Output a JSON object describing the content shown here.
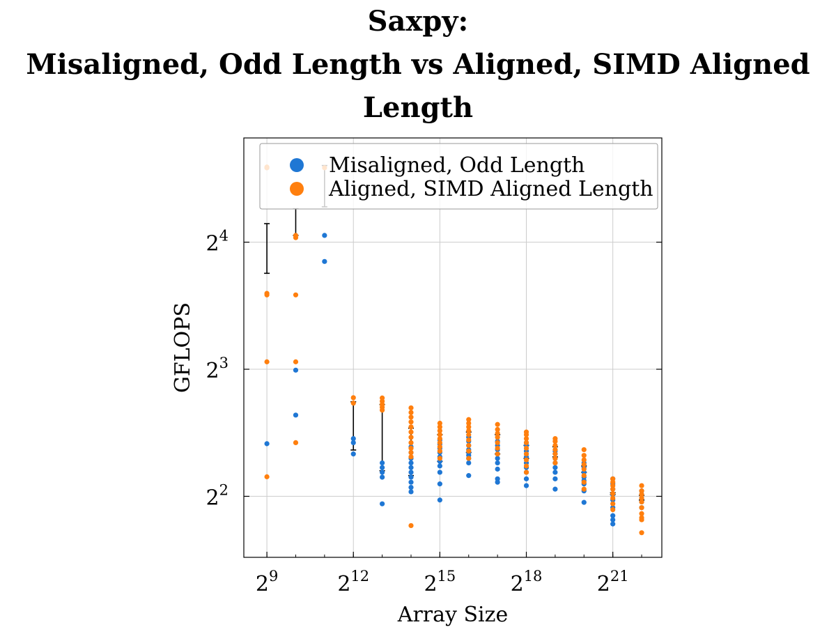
{
  "chart_data": {
    "type": "scatter",
    "title_lines": [
      "Saxpy:",
      "Misaligned, Odd Length vs Aligned, SIMD Aligned",
      "Length"
    ],
    "xlabel": "Array Size",
    "ylabel": "GFLOPS",
    "x_scale": "log2",
    "y_scale": "log2",
    "xlim_exp": [
      8.2,
      22.7
    ],
    "ylim_exp": [
      1.52,
      4.82
    ],
    "x_ticks": [
      {
        "exp": 9,
        "base": "2",
        "sup": "9"
      },
      {
        "exp": 12,
        "base": "2",
        "sup": "12"
      },
      {
        "exp": 15,
        "base": "2",
        "sup": "15"
      },
      {
        "exp": 18,
        "base": "2",
        "sup": "18"
      },
      {
        "exp": 21,
        "base": "2",
        "sup": "21"
      }
    ],
    "y_ticks": [
      {
        "exp": 2,
        "base": "2",
        "sup": "2"
      },
      {
        "exp": 3,
        "base": "2",
        "sup": "3"
      },
      {
        "exp": 4,
        "base": "2",
        "sup": "4"
      }
    ],
    "grid": true,
    "legend_position": "top-right",
    "series": [
      {
        "name": "Misaligned, Odd Length",
        "color": "#1f77d4",
        "points": [
          {
            "x": 9,
            "y": [
              5.33,
              24.0
            ]
          },
          {
            "x": 10,
            "y": [
              6.23,
              7.96,
              24.0
            ]
          },
          {
            "x": 11,
            "y": [
              14.4,
              16.6,
              28.5
            ]
          },
          {
            "x": 12,
            "y": [
              5.04,
              5.36,
              5.48
            ]
          },
          {
            "x": 13,
            "y": [
              3.84,
              4.44,
              4.56,
              4.68,
              4.8
            ]
          },
          {
            "x": 14,
            "y": [
              4.1,
              4.2,
              4.32,
              4.44,
              4.56,
              4.68,
              4.8,
              4.92,
              5.08,
              5.24
            ]
          },
          {
            "x": 15,
            "y": [
              3.92,
              4.28,
              4.56,
              4.72,
              4.84,
              4.96,
              5.08,
              5.2,
              5.32,
              5.44
            ]
          },
          {
            "x": 16,
            "y": [
              4.48,
              4.8,
              4.92,
              5.0,
              5.08,
              5.16,
              5.28,
              5.4,
              5.52
            ]
          },
          {
            "x": 17,
            "y": [
              4.32,
              4.4,
              4.64,
              4.8,
              4.92,
              5.04,
              5.16,
              5.28,
              5.4
            ]
          },
          {
            "x": 18,
            "y": [
              4.24,
              4.4,
              4.56,
              4.68,
              4.8,
              4.96,
              5.12,
              5.28,
              5.36
            ]
          },
          {
            "x": 19,
            "y": [
              4.16,
              4.4,
              4.56,
              4.68,
              4.8,
              4.92,
              5.04,
              5.12
            ]
          },
          {
            "x": 20,
            "y": [
              3.87,
              4.12,
              4.28,
              4.36,
              4.44,
              4.56,
              4.68,
              4.8
            ]
          },
          {
            "x": 21,
            "y": [
              3.44,
              3.52,
              3.6,
              3.76,
              3.92,
              4.04,
              4.16,
              4.28,
              4.4
            ]
          },
          {
            "x": 22,
            "y": [
              3.76,
              3.88,
              3.96,
              4.04,
              4.12
            ]
          }
        ],
        "offset": 0.0
      },
      {
        "name": "Aligned, SIMD Aligned Length",
        "color": "#ff7f0e",
        "points": [
          {
            "x": 9,
            "y": [
              4.45,
              8.33,
              12.0,
              12.1,
              24.0,
              24.1
            ]
          },
          {
            "x": 10,
            "y": [
              5.36,
              8.33,
              12.0,
              16.6,
              16.4
            ]
          },
          {
            "x": 11,
            "y": [
              24.0
            ]
          },
          {
            "x": 12,
            "y": [
              6.65,
              6.85
            ]
          },
          {
            "x": 13,
            "y": [
              6.4,
              6.5,
              6.6,
              6.72,
              6.84
            ]
          },
          {
            "x": 14,
            "y": [
              3.41,
              4.96,
              5.08,
              5.2,
              5.36,
              5.52,
              5.68,
              5.84,
              6.0,
              6.16,
              6.32,
              6.48
            ]
          },
          {
            "x": 15,
            "y": [
              4.92,
              5.12,
              5.24,
              5.36,
              5.48,
              5.6,
              5.72,
              5.84,
              5.96
            ]
          },
          {
            "x": 16,
            "y": [
              4.92,
              5.12,
              5.28,
              5.44,
              5.6,
              5.72,
              5.84,
              5.96,
              6.08
            ]
          },
          {
            "x": 17,
            "y": [
              5.04,
              5.2,
              5.36,
              5.52,
              5.64,
              5.76,
              5.92
            ]
          },
          {
            "x": 18,
            "y": [
              4.56,
              4.72,
              4.88,
              5.04,
              5.2,
              5.36,
              5.48,
              5.6,
              5.68
            ]
          },
          {
            "x": 19,
            "y": [
              4.8,
              4.92,
              5.04,
              5.16,
              5.28,
              5.4,
              5.48
            ]
          },
          {
            "x": 20,
            "y": [
              4.16,
              4.32,
              4.48,
              4.64,
              4.76,
              4.88,
              5.0,
              5.16
            ]
          },
          {
            "x": 21,
            "y": [
              3.72,
              3.84,
              3.96,
              4.06,
              4.16,
              4.24,
              4.32,
              4.4
            ]
          },
          {
            "x": 22,
            "y": [
              3.28,
              3.52,
              3.56,
              3.64,
              3.76,
              3.88,
              3.96,
              4.04,
              4.12,
              4.24
            ]
          }
        ],
        "offset": 0.0
      }
    ],
    "error_bars": [
      {
        "x": 9,
        "low": 13.5,
        "high": 17.7
      },
      {
        "x": 10,
        "low": 16.6,
        "high": 19.2
      },
      {
        "x": 11,
        "low": 19.4,
        "high": 24.3
      },
      {
        "x": 12,
        "low": 5.15,
        "high": 6.7
      },
      {
        "x": 13,
        "low": 4.6,
        "high": 6.6
      },
      {
        "x": 14,
        "low": 4.48,
        "high": 5.8
      },
      {
        "x": 15,
        "low": 4.84,
        "high": 5.6
      },
      {
        "x": 16,
        "low": 5.08,
        "high": 5.68
      },
      {
        "x": 17,
        "low": 5.04,
        "high": 5.6
      },
      {
        "x": 18,
        "low": 4.92,
        "high": 5.28
      },
      {
        "x": 19,
        "low": 4.96,
        "high": 5.24
      },
      {
        "x": 20,
        "low": 4.56,
        "high": 4.72
      },
      {
        "x": 21,
        "low": 4.04,
        "high": 4.08
      },
      {
        "x": 22,
        "low": 3.92,
        "high": 4.02
      }
    ]
  }
}
